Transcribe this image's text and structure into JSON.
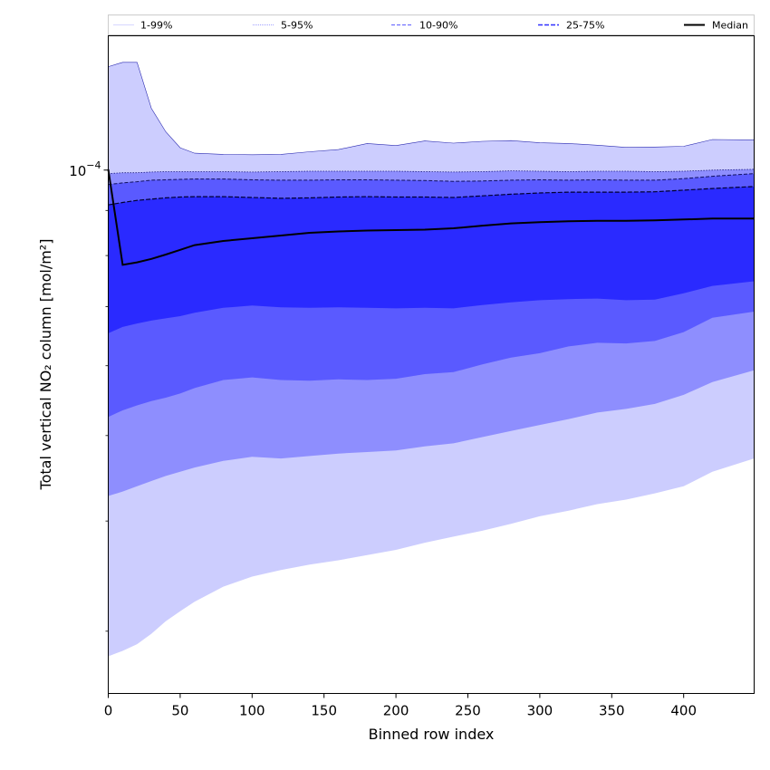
{
  "chart_data": {
    "type": "area",
    "title": "",
    "xlabel": "Binned row index",
    "ylabel": "Total vertical NO₂ column [mol/m²]",
    "xlim": [
      0,
      449
    ],
    "ylim": [
      2.55e-05,
      0.000142
    ],
    "yscale": "log",
    "x_ticks": [
      0,
      50,
      100,
      150,
      200,
      250,
      300,
      350,
      400
    ],
    "y_ticks": [
      {
        "value": 0.0001,
        "base": "10",
        "exp": "−4"
      }
    ],
    "grid": false,
    "legend_position": "top",
    "legend": [
      {
        "label": "1-99%",
        "style": "thin",
        "color": "#c8c8ff"
      },
      {
        "label": "5-95%",
        "style": "dotted",
        "color": "#8080ff"
      },
      {
        "label": "10-90%",
        "style": "dashed",
        "color": "#6060ff"
      },
      {
        "label": "25-75%",
        "style": "dashed",
        "color": "#2020ff"
      },
      {
        "label": "Median",
        "style": "solid",
        "color": "#000000"
      }
    ],
    "colors": {
      "band_1_99": "#cccdfe",
      "band_5_95": "#8e8efe",
      "band_10_90": "#5a5aff",
      "band_25_75": "#2a2aff",
      "median": "#000000"
    },
    "x": [
      0,
      10,
      20,
      30,
      40,
      50,
      60,
      80,
      100,
      120,
      140,
      160,
      180,
      200,
      220,
      240,
      260,
      280,
      300,
      320,
      340,
      360,
      380,
      400,
      420,
      449
    ],
    "series": [
      {
        "name": "p01",
        "values": [
          2.81e-05,
          2.85e-05,
          2.9e-05,
          2.98e-05,
          3.08e-05,
          3.16e-05,
          3.24e-05,
          3.37e-05,
          3.46e-05,
          3.52e-05,
          3.57e-05,
          3.61e-05,
          3.66e-05,
          3.71e-05,
          3.78e-05,
          3.84e-05,
          3.9e-05,
          3.97e-05,
          4.05e-05,
          4.11e-05,
          4.18e-05,
          4.23e-05,
          4.3e-05,
          4.38e-05,
          4.55e-05,
          4.71e-05
        ]
      },
      {
        "name": "p05",
        "values": [
          4.27e-05,
          4.32e-05,
          4.38e-05,
          4.44e-05,
          4.5e-05,
          4.55e-05,
          4.6e-05,
          4.68e-05,
          4.73e-05,
          4.71e-05,
          4.74e-05,
          4.77e-05,
          4.79e-05,
          4.81e-05,
          4.86e-05,
          4.9e-05,
          4.98e-05,
          5.06e-05,
          5.14e-05,
          5.22e-05,
          5.31e-05,
          5.36e-05,
          5.43e-05,
          5.56e-05,
          5.75e-05,
          5.93e-05
        ]
      },
      {
        "name": "p10",
        "values": [
          5.25e-05,
          5.34e-05,
          5.41e-05,
          5.47e-05,
          5.52e-05,
          5.58e-05,
          5.66e-05,
          5.78e-05,
          5.82e-05,
          5.78e-05,
          5.77e-05,
          5.79e-05,
          5.78e-05,
          5.8e-05,
          5.87e-05,
          5.9e-05,
          6.02e-05,
          6.13e-05,
          6.2e-05,
          6.31e-05,
          6.37e-05,
          6.36e-05,
          6.4e-05,
          6.55e-05,
          6.8e-05,
          6.91e-05
        ]
      },
      {
        "name": "p25",
        "values": [
          6.53e-05,
          6.64e-05,
          6.7e-05,
          6.75e-05,
          6.79e-05,
          6.83e-05,
          6.89e-05,
          6.98e-05,
          7.02e-05,
          6.99e-05,
          6.98e-05,
          6.99e-05,
          6.98e-05,
          6.97e-05,
          6.98e-05,
          6.97e-05,
          7.03e-05,
          7.08e-05,
          7.12e-05,
          7.14e-05,
          7.15e-05,
          7.12e-05,
          7.13e-05,
          7.25e-05,
          7.39e-05,
          7.48e-05
        ]
      },
      {
        "name": "median",
        "values": [
          0.0001002,
          7.81e-05,
          7.86e-05,
          7.93e-05,
          8.02e-05,
          8.12e-05,
          8.22e-05,
          8.31e-05,
          8.37e-05,
          8.43e-05,
          8.49e-05,
          8.52e-05,
          8.54e-05,
          8.55e-05,
          8.56e-05,
          8.59e-05,
          8.65e-05,
          8.7e-05,
          8.73e-05,
          8.75e-05,
          8.76e-05,
          8.76e-05,
          8.77e-05,
          8.79e-05,
          8.81e-05,
          8.81e-05
        ]
      },
      {
        "name": "p75",
        "values": [
          9.13e-05,
          9.19e-05,
          9.24e-05,
          9.27e-05,
          9.3e-05,
          9.32e-05,
          9.33e-05,
          9.33e-05,
          9.31e-05,
          9.29e-05,
          9.3e-05,
          9.32e-05,
          9.33e-05,
          9.32e-05,
          9.32e-05,
          9.31e-05,
          9.35e-05,
          9.39e-05,
          9.42e-05,
          9.44e-05,
          9.44e-05,
          9.44e-05,
          9.45e-05,
          9.49e-05,
          9.53e-05,
          9.58e-05
        ]
      },
      {
        "name": "p90",
        "values": [
          9.63e-05,
          9.67e-05,
          9.7e-05,
          9.74e-05,
          9.75e-05,
          9.76e-05,
          9.77e-05,
          9.77e-05,
          9.75e-05,
          9.74e-05,
          9.74e-05,
          9.75e-05,
          9.75e-05,
          9.74e-05,
          9.73e-05,
          9.71e-05,
          9.72e-05,
          9.74e-05,
          9.75e-05,
          9.74e-05,
          9.75e-05,
          9.74e-05,
          9.74e-05,
          9.78e-05,
          9.84e-05,
          9.91e-05
        ]
      },
      {
        "name": "p95",
        "values": [
          9.91e-05,
          9.93e-05,
          9.93e-05,
          9.95e-05,
          9.96e-05,
          9.96e-05,
          9.96e-05,
          9.96e-05,
          9.95e-05,
          9.96e-05,
          9.97e-05,
          9.97e-05,
          9.97e-05,
          9.97e-05,
          9.96e-05,
          9.95e-05,
          9.96e-05,
          9.98e-05,
          9.97e-05,
          9.96e-05,
          9.97e-05,
          9.97e-05,
          9.96e-05,
          9.97e-05,
          0.0001,
          0.0001002
        ]
      },
      {
        "name": "p99",
        "values": [
          0.000131,
          0.0001325,
          0.0001325,
          0.0001175,
          0.0001105,
          0.000106,
          0.0001045,
          0.0001042,
          0.0001041,
          0.0001042,
          0.0001049,
          0.0001055,
          0.0001072,
          0.0001066,
          0.0001079,
          0.0001073,
          0.0001078,
          0.000108,
          0.0001074,
          0.0001072,
          0.0001067,
          0.0001061,
          0.0001062,
          0.0001064,
          0.0001083,
          0.0001082
        ]
      }
    ]
  }
}
